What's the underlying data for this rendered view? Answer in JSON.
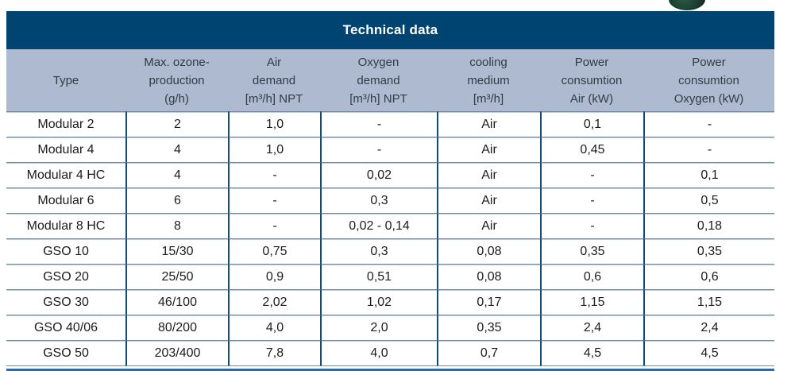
{
  "table": {
    "title": "Technical data",
    "columns": [
      {
        "lines": [
          "Type"
        ]
      },
      {
        "lines": [
          "Max. ozone-",
          "production",
          "(g/h)"
        ]
      },
      {
        "lines": [
          "Air",
          "demand",
          "[m³/h] NPT"
        ]
      },
      {
        "lines": [
          "Oxygen",
          "demand",
          "[m³/h] NPT"
        ]
      },
      {
        "lines": [
          "cooling",
          "medium",
          "[m³/h]"
        ]
      },
      {
        "lines": [
          "Power",
          "consumtion",
          "Air (kW)"
        ]
      },
      {
        "lines": [
          "Power",
          "consumtion",
          "Oxygen (kW)"
        ]
      }
    ],
    "rows": [
      [
        "Modular 2",
        "2",
        "1,0",
        "-",
        "Air",
        "0,1",
        "-"
      ],
      [
        "Modular 4",
        "4",
        "1,0",
        "-",
        "Air",
        "0,45",
        "-"
      ],
      [
        "Modular 4 HC",
        "4",
        "-",
        "0,02",
        "Air",
        "-",
        "0,1"
      ],
      [
        "Modular 6",
        "6",
        "-",
        "0,3",
        "Air",
        "-",
        "0,5"
      ],
      [
        "Modular 8 HC",
        "8",
        "-",
        "0,02 - 0,14",
        "Air",
        "-",
        "0,18"
      ],
      [
        "GSO 10",
        "15/30",
        "0,75",
        "0,3",
        "0,08",
        "0,35",
        "0,35"
      ],
      [
        "GSO 20",
        "25/50",
        "0,9",
        "0,51",
        "0,08",
        "0,6",
        "0,6"
      ],
      [
        "GSO 30",
        "46/100",
        "2,02",
        "1,02",
        "0,17",
        "1,15",
        "1,15"
      ],
      [
        "GSO 40/06",
        "80/200",
        "4,0",
        "2,0",
        "0,35",
        "2,4",
        "2,4"
      ],
      [
        "GSO 50",
        "203/400",
        "7,8",
        "4,0",
        "0,7",
        "4,5",
        "4,5"
      ]
    ]
  },
  "colors": {
    "title_bar": "#004472",
    "header_bg": "#adbad0",
    "header_text": "#333b46",
    "body_text": "#1c1c1c",
    "row_line_dark": "#74889f",
    "row_line_light": "#b9cbdd",
    "column_line": "#0f4c7c",
    "bottom_bar": "#2e6ba4",
    "green_decor": "#1c3f30"
  }
}
